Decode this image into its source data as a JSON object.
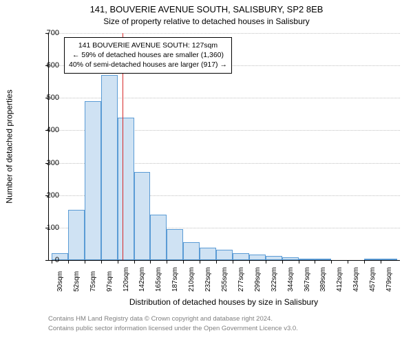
{
  "title": "141, BOUVERIE AVENUE SOUTH, SALISBURY, SP2 8EB",
  "subtitle": "Size of property relative to detached houses in Salisbury",
  "ylabel": "Number of detached properties",
  "xlabel": "Distribution of detached houses by size in Salisbury",
  "footer_line1": "Contains HM Land Registry data © Crown copyright and database right 2024.",
  "footer_line2": "Contains public sector information licensed under the Open Government Licence v3.0.",
  "chart": {
    "type": "histogram",
    "background_color": "#ffffff",
    "grid_color": "#bfbfbf",
    "axis_color": "#000000",
    "bar_fill": "#cfe2f3",
    "bar_border": "#5a9bd5",
    "reference_line_color": "#d62728",
    "reference_value_sqm": 127,
    "x_categories": [
      "30sqm",
      "52sqm",
      "75sqm",
      "97sqm",
      "120sqm",
      "142sqm",
      "165sqm",
      "187sqm",
      "210sqm",
      "232sqm",
      "255sqm",
      "277sqm",
      "299sqm",
      "322sqm",
      "344sqm",
      "367sqm",
      "389sqm",
      "412sqm",
      "434sqm",
      "457sqm",
      "479sqm"
    ],
    "x_bin_width_sqm": 22.5,
    "values": [
      22,
      155,
      490,
      570,
      440,
      272,
      140,
      95,
      55,
      38,
      32,
      22,
      18,
      12,
      8,
      4,
      3,
      0,
      0,
      3,
      2
    ],
    "ylim": [
      0,
      700
    ],
    "ytick_step": 100,
    "yticks": [
      0,
      100,
      200,
      300,
      400,
      500,
      600,
      700
    ],
    "title_fontsize": 13,
    "label_fontsize": 12,
    "tick_fontsize": 11,
    "xtick_fontsize": 10,
    "footer_fontsize": 9.5,
    "footer_color": "#7f7f7f",
    "xtick_rotation_deg": 90
  },
  "info_box": {
    "line1": "141 BOUVERIE AVENUE SOUTH: 127sqm",
    "line2": "← 59% of detached houses are smaller (1,360)",
    "line3": "40% of semi-detached houses are larger (917) →",
    "border_color": "#000000",
    "background_color": "#ffffff",
    "fontsize": 10.5
  }
}
